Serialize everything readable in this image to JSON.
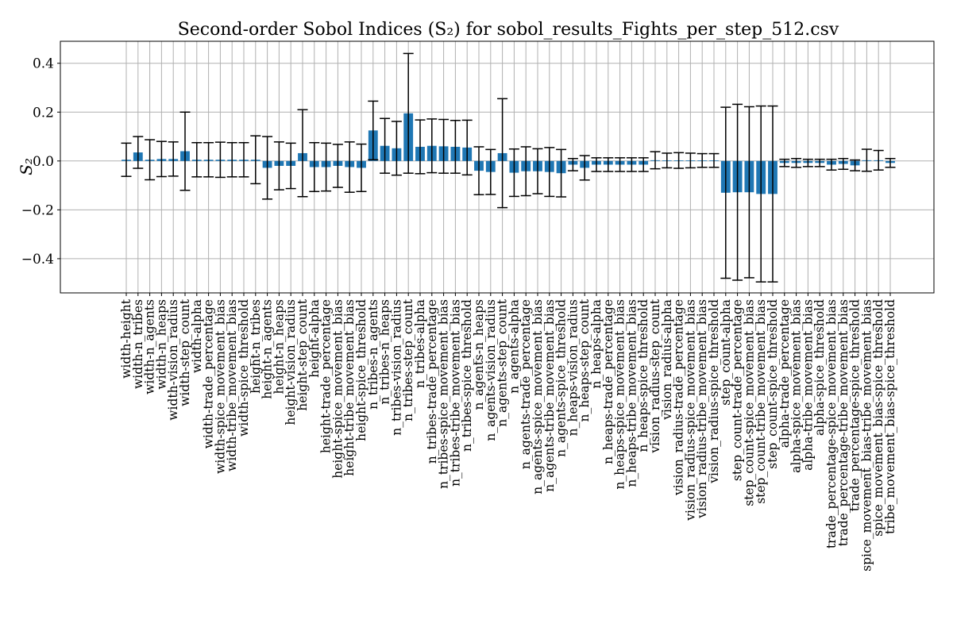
{
  "chart_data": {
    "type": "bar",
    "title": "Second-order Sobol Indices (S₂) for sobol_results_Fights_per_step_512.csv",
    "xlabel": "",
    "ylabel": "S₂",
    "ylim": [
      -0.54,
      0.49
    ],
    "yticks": [
      0.4,
      0.2,
      0.0,
      -0.2,
      -0.4
    ],
    "ytick_labels": [
      "0.4",
      "0.2",
      "0.0",
      "−0.2",
      "−0.4"
    ],
    "grid": true,
    "legend": "none",
    "colors": {
      "bar": "#1f77b4",
      "error": "#000000",
      "grid": "#b0b0b0"
    },
    "categories": [
      "width-height",
      "width-n_tribes",
      "width-n_agents",
      "width-n_heaps",
      "width-vision_radius",
      "width-step_count",
      "width-alpha",
      "width-trade_percentage",
      "width-spice_movement_bias",
      "width-tribe_movement_bias",
      "width-spice_threshold",
      "height-n_tribes",
      "height-n_agents",
      "height-n_heaps",
      "height-vision_radius",
      "height-step_count",
      "height-alpha",
      "height-trade_percentage",
      "height-spice_movement_bias",
      "height-tribe_movement_bias",
      "height-spice_threshold",
      "n_tribes-n_agents",
      "n_tribes-n_heaps",
      "n_tribes-vision_radius",
      "n_tribes-step_count",
      "n_tribes-alpha",
      "n_tribes-trade_percentage",
      "n_tribes-spice_movement_bias",
      "n_tribes-tribe_movement_bias",
      "n_tribes-spice_threshold",
      "n_agents-n_heaps",
      "n_agents-vision_radius",
      "n_agents-step_count",
      "n_agents-alpha",
      "n_agents-trade_percentage",
      "n_agents-spice_movement_bias",
      "n_agents-tribe_movement_bias",
      "n_agents-spice_threshold",
      "n_heaps-vision_radius",
      "n_heaps-step_count",
      "n_heaps-alpha",
      "n_heaps-trade_percentage",
      "n_heaps-spice_movement_bias",
      "n_heaps-tribe_movement_bias",
      "n_heaps-spice_threshold",
      "vision_radius-step_count",
      "vision_radius-alpha",
      "vision_radius-trade_percentage",
      "vision_radius-spice_movement_bias",
      "vision_radius-tribe_movement_bias",
      "vision_radius-spice_threshold",
      "step_count-alpha",
      "step_count-trade_percentage",
      "step_count-spice_movement_bias",
      "step_count-tribe_movement_bias",
      "step_count-spice_threshold",
      "alpha-trade_percentage",
      "alpha-spice_movement_bias",
      "alpha-tribe_movement_bias",
      "alpha-spice_threshold",
      "trade_percentage-spice_movement_bias",
      "trade_percentage-tribe_movement_bias",
      "trade_percentage-spice_threshold",
      "spice_movement_bias-tribe_movement_bias",
      "spice_movement_bias-spice_threshold",
      "tribe_movement_bias-spice_threshold"
    ],
    "values": [
      0.005,
      0.035,
      0.005,
      0.008,
      0.008,
      0.04,
      0.005,
      0.005,
      0.005,
      0.005,
      0.005,
      0.005,
      -0.028,
      -0.02,
      -0.02,
      0.032,
      -0.025,
      -0.025,
      -0.02,
      -0.025,
      -0.028,
      0.125,
      0.062,
      0.052,
      0.195,
      0.058,
      0.062,
      0.06,
      0.058,
      0.055,
      -0.04,
      -0.045,
      0.032,
      -0.048,
      -0.042,
      -0.042,
      -0.045,
      -0.05,
      -0.015,
      -0.028,
      -0.015,
      -0.015,
      -0.015,
      -0.015,
      -0.015,
      0.003,
      0.002,
      0.002,
      0.002,
      0.002,
      0.002,
      -0.13,
      -0.128,
      -0.128,
      -0.135,
      -0.135,
      -0.008,
      -0.008,
      -0.008,
      -0.008,
      -0.015,
      -0.012,
      -0.018,
      0.003,
      0.003,
      -0.008
    ],
    "errors": [
      0.068,
      0.065,
      0.082,
      0.072,
      0.07,
      0.16,
      0.07,
      0.07,
      0.072,
      0.07,
      0.07,
      0.098,
      0.128,
      0.098,
      0.093,
      0.178,
      0.1,
      0.098,
      0.088,
      0.103,
      0.097,
      0.12,
      0.112,
      0.11,
      0.245,
      0.11,
      0.11,
      0.11,
      0.108,
      0.112,
      0.098,
      0.092,
      0.223,
      0.097,
      0.1,
      0.092,
      0.1,
      0.097,
      0.025,
      0.05,
      0.028,
      0.028,
      0.028,
      0.028,
      0.028,
      0.035,
      0.03,
      0.032,
      0.03,
      0.028,
      0.028,
      0.35,
      0.36,
      0.35,
      0.36,
      0.36,
      0.015,
      0.018,
      0.015,
      0.015,
      0.022,
      0.022,
      0.022,
      0.045,
      0.04,
      0.018
    ]
  }
}
